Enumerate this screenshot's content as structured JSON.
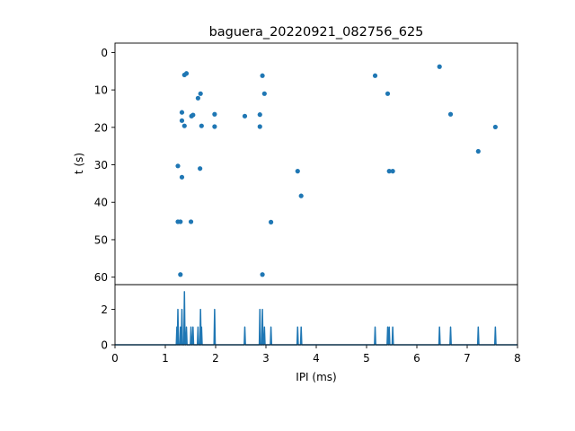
{
  "colors": {
    "series": "#1f77b4",
    "axis": "#000000",
    "background": "#ffffff"
  },
  "chart_data": [
    {
      "type": "scatter",
      "title": "baguera_20220921_082756_625",
      "xlabel": "",
      "ylabel": "t (s)",
      "xlim": [
        0,
        8
      ],
      "ylim": [
        62,
        -2.5
      ],
      "y_inverted": true,
      "y_ticks": [
        0,
        10,
        20,
        30,
        40,
        50,
        60
      ],
      "grid": false,
      "points": [
        {
          "x": 1.38,
          "y": 6.0
        },
        {
          "x": 1.42,
          "y": 5.6
        },
        {
          "x": 1.33,
          "y": 16.0
        },
        {
          "x": 1.33,
          "y": 18.2
        },
        {
          "x": 1.38,
          "y": 19.6
        },
        {
          "x": 1.52,
          "y": 17.0
        },
        {
          "x": 1.55,
          "y": 16.7
        },
        {
          "x": 1.65,
          "y": 12.2
        },
        {
          "x": 1.7,
          "y": 11.0
        },
        {
          "x": 1.72,
          "y": 19.6
        },
        {
          "x": 1.98,
          "y": 16.5
        },
        {
          "x": 1.98,
          "y": 19.8
        },
        {
          "x": 1.25,
          "y": 30.3
        },
        {
          "x": 1.33,
          "y": 33.3
        },
        {
          "x": 1.69,
          "y": 31.0
        },
        {
          "x": 1.25,
          "y": 45.2
        },
        {
          "x": 1.3,
          "y": 45.2
        },
        {
          "x": 1.51,
          "y": 45.2
        },
        {
          "x": 1.3,
          "y": 59.3
        },
        {
          "x": 2.58,
          "y": 17.0
        },
        {
          "x": 2.88,
          "y": 16.6
        },
        {
          "x": 2.88,
          "y": 19.8
        },
        {
          "x": 2.93,
          "y": 6.2
        },
        {
          "x": 2.97,
          "y": 11.0
        },
        {
          "x": 3.1,
          "y": 45.3
        },
        {
          "x": 2.93,
          "y": 59.3
        },
        {
          "x": 3.63,
          "y": 31.7
        },
        {
          "x": 3.7,
          "y": 38.3
        },
        {
          "x": 5.17,
          "y": 6.2
        },
        {
          "x": 5.42,
          "y": 11.0
        },
        {
          "x": 5.45,
          "y": 31.7
        },
        {
          "x": 5.52,
          "y": 31.7
        },
        {
          "x": 6.45,
          "y": 3.8
        },
        {
          "x": 6.67,
          "y": 16.5
        },
        {
          "x": 7.22,
          "y": 26.4
        },
        {
          "x": 7.56,
          "y": 19.9
        }
      ]
    },
    {
      "type": "line",
      "title": "",
      "xlabel": "IPI (ms)",
      "ylabel": "",
      "xlim": [
        0,
        8
      ],
      "ylim": [
        0,
        3.4
      ],
      "x_ticks": [
        0,
        1,
        2,
        3,
        4,
        5,
        6,
        7,
        8
      ],
      "y_ticks": [
        0,
        2
      ],
      "grid": false,
      "spikes": [
        {
          "x": 1.23,
          "y": 1
        },
        {
          "x": 1.25,
          "y": 2
        },
        {
          "x": 1.3,
          "y": 1
        },
        {
          "x": 1.33,
          "y": 2
        },
        {
          "x": 1.38,
          "y": 3
        },
        {
          "x": 1.42,
          "y": 1
        },
        {
          "x": 1.51,
          "y": 1
        },
        {
          "x": 1.55,
          "y": 1
        },
        {
          "x": 1.65,
          "y": 1
        },
        {
          "x": 1.7,
          "y": 2
        },
        {
          "x": 1.72,
          "y": 1
        },
        {
          "x": 1.98,
          "y": 2
        },
        {
          "x": 2.58,
          "y": 1
        },
        {
          "x": 2.88,
          "y": 2
        },
        {
          "x": 2.93,
          "y": 2
        },
        {
          "x": 2.97,
          "y": 1
        },
        {
          "x": 3.1,
          "y": 1
        },
        {
          "x": 3.63,
          "y": 1
        },
        {
          "x": 3.7,
          "y": 1
        },
        {
          "x": 5.17,
          "y": 1
        },
        {
          "x": 5.42,
          "y": 1
        },
        {
          "x": 5.45,
          "y": 1
        },
        {
          "x": 5.52,
          "y": 1
        },
        {
          "x": 6.45,
          "y": 1
        },
        {
          "x": 6.67,
          "y": 1
        },
        {
          "x": 7.22,
          "y": 1
        },
        {
          "x": 7.56,
          "y": 1
        }
      ]
    }
  ]
}
